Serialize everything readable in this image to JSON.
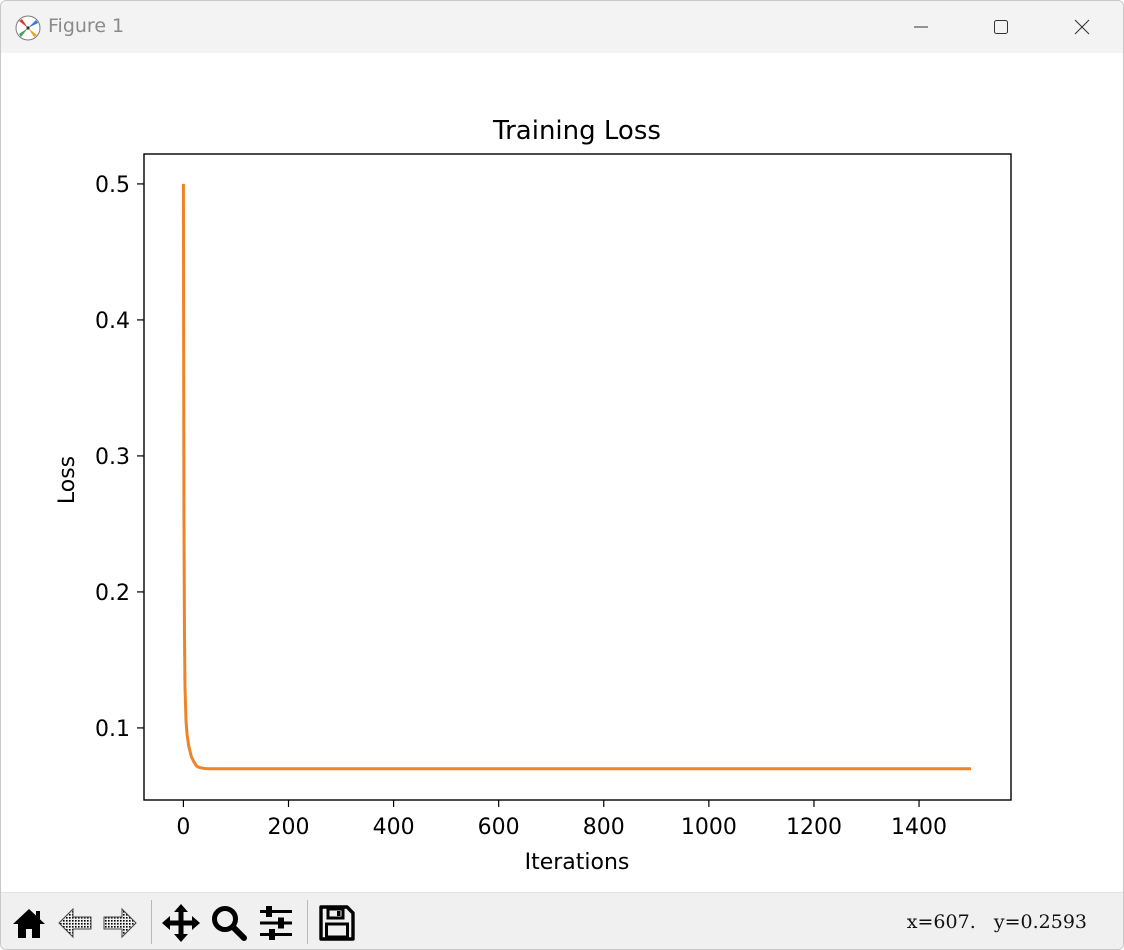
{
  "window": {
    "title": "Figure 1",
    "app_icon": "matplotlib-icon",
    "controls": [
      "minimize-icon",
      "maximize-icon",
      "close-icon"
    ]
  },
  "toolbar": {
    "buttons": [
      "home-icon",
      "back-icon",
      "forward-icon",
      "pan-icon",
      "zoom-icon",
      "configure-subplots-icon",
      "save-icon"
    ],
    "coordinates": "x=607.   y=0.2593"
  },
  "colors": {
    "line": "#ee8427",
    "titlebar": "#f3f3f3",
    "toolbar": "#f0f0f0"
  },
  "chart_data": {
    "type": "line",
    "title": "Training Loss",
    "xlabel": "Iterations",
    "ylabel": "Loss",
    "xlim": [
      -75,
      1575
    ],
    "ylim": [
      0.047,
      0.522
    ],
    "xticks": [
      0,
      200,
      400,
      600,
      800,
      1000,
      1200,
      1400
    ],
    "yticks": [
      0.1,
      0.2,
      0.3,
      0.4,
      0.5
    ],
    "ytick_labels": [
      "0.1",
      "0.2",
      "0.3",
      "0.4",
      "0.5"
    ],
    "grid": false,
    "series": [
      {
        "x": [
          0,
          1,
          2,
          3,
          5,
          7,
          10,
          15,
          20,
          25,
          30,
          35,
          40,
          50,
          75,
          100,
          200,
          400,
          600,
          800,
          1000,
          1200,
          1400,
          1499
        ],
        "y": [
          0.5,
          0.26,
          0.17,
          0.13,
          0.105,
          0.095,
          0.087,
          0.079,
          0.075,
          0.072,
          0.071,
          0.0705,
          0.0702,
          0.07,
          0.07,
          0.07,
          0.07,
          0.07,
          0.07,
          0.07,
          0.07,
          0.07,
          0.07,
          0.07
        ]
      }
    ]
  }
}
